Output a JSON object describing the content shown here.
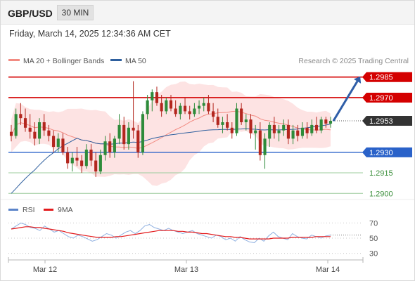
{
  "header": {
    "symbol": "GBP/USD",
    "timeframe": "30 MIN",
    "datetime": "Friday, March 14, 2025 12:34:36 AM CET"
  },
  "legend": {
    "main": [
      {
        "label": "MA 20 + Bollinger Bands",
        "color": "#f28b82"
      },
      {
        "label": "MA 50",
        "color": "#2e5f9e"
      }
    ],
    "rsi": [
      {
        "label": "RSI",
        "color": "#5b84c9"
      },
      {
        "label": "9MA",
        "color": "#e31a1c"
      }
    ],
    "credit": "Research © 2025 Trading Central"
  },
  "colors": {
    "up": "#2e8b3a",
    "down": "#b3261e",
    "resistance": "#d40000",
    "support": "#2a62c9",
    "target": "#3b8f3b",
    "arrow": "#2f5ea8",
    "band": "#fde3e3"
  },
  "chart_data": [
    {
      "type": "candlestick",
      "title": "GBP/USD",
      "timeframe": "30 MIN",
      "ylim": [
        1.2895,
        1.299
      ],
      "x_ticks": [
        "Mar 12",
        "Mar 13",
        "Mar 14"
      ],
      "last_price": 1.2953,
      "levels": [
        {
          "value": 1.2985,
          "label": "1.2985",
          "kind": "resistance"
        },
        {
          "value": 1.297,
          "label": "1.2970",
          "kind": "resistance"
        },
        {
          "value": 1.2953,
          "label": "1.2953",
          "kind": "last"
        },
        {
          "value": 1.293,
          "label": "1.2930",
          "kind": "support"
        },
        {
          "value": 1.2915,
          "label": "1.2915",
          "kind": "target"
        },
        {
          "value": 1.29,
          "label": "1.2900",
          "kind": "target"
        }
      ],
      "projection": {
        "from": 1.2953,
        "to": 1.2985
      },
      "ohlc": [
        [
          1.2945,
          1.295,
          1.2938,
          1.2942
        ],
        [
          1.2942,
          1.2962,
          1.294,
          1.2958
        ],
        [
          1.2958,
          1.2966,
          1.295,
          1.2955
        ],
        [
          1.2955,
          1.2962,
          1.2945,
          1.2948
        ],
        [
          1.2948,
          1.2958,
          1.294,
          1.2945
        ],
        [
          1.2945,
          1.2952,
          1.2935,
          1.294
        ],
        [
          1.294,
          1.2955,
          1.2936,
          1.2952
        ],
        [
          1.2952,
          1.2958,
          1.2942,
          1.2946
        ],
        [
          1.2946,
          1.295,
          1.2938,
          1.2942
        ],
        [
          1.2942,
          1.2946,
          1.293,
          1.2934
        ],
        [
          1.2934,
          1.2944,
          1.293,
          1.294
        ],
        [
          1.294,
          1.2944,
          1.2928,
          1.293
        ],
        [
          1.293,
          1.2934,
          1.2918,
          1.2922
        ],
        [
          1.2922,
          1.293,
          1.2916,
          1.2926
        ],
        [
          1.2926,
          1.2934,
          1.292,
          1.2924
        ],
        [
          1.2924,
          1.2928,
          1.2915,
          1.292
        ],
        [
          1.292,
          1.2936,
          1.2918,
          1.2932
        ],
        [
          1.2932,
          1.2936,
          1.292,
          1.2924
        ],
        [
          1.2924,
          1.293,
          1.2912,
          1.2916
        ],
        [
          1.2916,
          1.2932,
          1.2914,
          1.2928
        ],
        [
          1.2928,
          1.2942,
          1.2924,
          1.2938
        ],
        [
          1.2938,
          1.2944,
          1.2926,
          1.293
        ],
        [
          1.293,
          1.2942,
          1.2926,
          1.294
        ],
        [
          1.294,
          1.2958,
          1.2936,
          1.295
        ],
        [
          1.295,
          1.2956,
          1.2932,
          1.2936
        ],
        [
          1.2936,
          1.2952,
          1.2932,
          1.2948
        ],
        [
          1.2948,
          1.2982,
          1.294,
          1.2946
        ],
        [
          1.2946,
          1.295,
          1.2926,
          1.293
        ],
        [
          1.293,
          1.296,
          1.2928,
          1.2958
        ],
        [
          1.2958,
          1.2972,
          1.2954,
          1.2968
        ],
        [
          1.2968,
          1.2976,
          1.296,
          1.2974
        ],
        [
          1.2974,
          1.2978,
          1.2964,
          1.2966
        ],
        [
          1.2966,
          1.2972,
          1.2956,
          1.296
        ],
        [
          1.296,
          1.297,
          1.2958,
          1.2968
        ],
        [
          1.2968,
          1.2972,
          1.296,
          1.2962
        ],
        [
          1.2962,
          1.2968,
          1.2956,
          1.2958
        ],
        [
          1.2958,
          1.2966,
          1.2954,
          1.2964
        ],
        [
          1.2964,
          1.297,
          1.2958,
          1.296
        ],
        [
          1.296,
          1.2964,
          1.2954,
          1.2958
        ],
        [
          1.2958,
          1.2966,
          1.2956,
          1.2962
        ],
        [
          1.2962,
          1.2968,
          1.2958,
          1.2964
        ],
        [
          1.2964,
          1.297,
          1.296,
          1.2966
        ],
        [
          1.2966,
          1.2972,
          1.2958,
          1.296
        ],
        [
          1.296,
          1.2966,
          1.2952,
          1.2956
        ],
        [
          1.2956,
          1.2962,
          1.2948,
          1.295
        ],
        [
          1.295,
          1.2956,
          1.2944,
          1.2952
        ],
        [
          1.2952,
          1.2958,
          1.2946,
          1.2948
        ],
        [
          1.2948,
          1.2952,
          1.294,
          1.2944
        ],
        [
          1.2944,
          1.2966,
          1.2942,
          1.2962
        ],
        [
          1.2962,
          1.2966,
          1.295,
          1.2952
        ],
        [
          1.2952,
          1.2958,
          1.2946,
          1.2954
        ],
        [
          1.2954,
          1.2958,
          1.294,
          1.2944
        ],
        [
          1.2944,
          1.295,
          1.2932,
          1.2946
        ],
        [
          1.2946,
          1.2952,
          1.2924,
          1.2928
        ],
        [
          1.2928,
          1.2944,
          1.2918,
          1.294
        ],
        [
          1.294,
          1.2952,
          1.2934,
          1.295
        ],
        [
          1.295,
          1.2956,
          1.294,
          1.2944
        ],
        [
          1.2944,
          1.295,
          1.2938,
          1.2946
        ],
        [
          1.2946,
          1.2954,
          1.2942,
          1.295
        ],
        [
          1.295,
          1.2954,
          1.2936,
          1.294
        ],
        [
          1.294,
          1.295,
          1.2936,
          1.2946
        ],
        [
          1.2946,
          1.295,
          1.2938,
          1.2942
        ],
        [
          1.2942,
          1.2952,
          1.294,
          1.2948
        ],
        [
          1.2948,
          1.2952,
          1.294,
          1.2944
        ],
        [
          1.2944,
          1.2954,
          1.2942,
          1.295
        ],
        [
          1.295,
          1.2956,
          1.2944,
          1.2946
        ],
        [
          1.2946,
          1.2956,
          1.2944,
          1.2954
        ],
        [
          1.2954,
          1.2956,
          1.2948,
          1.2951
        ],
        [
          1.2951,
          1.2956,
          1.2948,
          1.2953
        ]
      ]
    },
    {
      "type": "line",
      "title": "RSI",
      "ylim": [
        25,
        75
      ],
      "y_ticks": [
        70,
        50,
        30
      ],
      "series": [
        {
          "name": "RSI",
          "values": [
            62,
            66,
            70,
            68,
            64,
            63,
            60,
            66,
            62,
            58,
            60,
            56,
            52,
            50,
            54,
            52,
            49,
            46,
            48,
            52,
            56,
            54,
            50,
            54,
            58,
            60,
            56,
            60,
            66,
            68,
            64,
            62,
            60,
            63,
            60,
            58,
            56,
            58,
            60,
            56,
            54,
            52,
            50,
            54,
            52,
            48,
            50,
            46,
            52,
            48,
            45,
            44,
            50,
            46,
            53,
            58,
            52,
            50,
            48,
            56,
            52,
            50,
            49,
            54,
            52,
            50,
            53,
            54
          ]
        },
        {
          "name": "9MA",
          "values": [
            62,
            63,
            64,
            65,
            65,
            64,
            64,
            63,
            62,
            61,
            60,
            59,
            57,
            56,
            55,
            54,
            53,
            52,
            51,
            51,
            51,
            51,
            52,
            52,
            53,
            54,
            55,
            56,
            57,
            58,
            59,
            60,
            60,
            60,
            60,
            59,
            59,
            58,
            58,
            57,
            56,
            56,
            55,
            54,
            53,
            52,
            52,
            51,
            51,
            50,
            49,
            49,
            49,
            49,
            49,
            50,
            50,
            50,
            50,
            51,
            51,
            51,
            51,
            51,
            52,
            52,
            52,
            52
          ]
        }
      ]
    }
  ]
}
